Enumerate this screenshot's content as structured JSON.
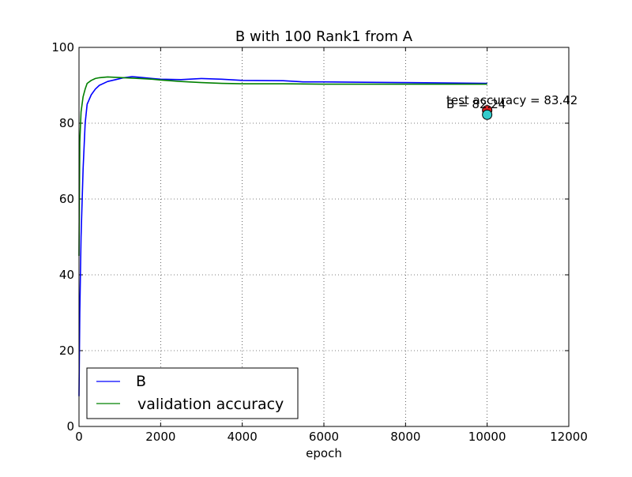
{
  "chart_data": {
    "type": "line",
    "title": "B with 100 Rank1 from A",
    "xlabel": "epoch",
    "ylabel": "",
    "xlim": [
      0,
      12000
    ],
    "ylim": [
      0,
      100
    ],
    "xticks": [
      0,
      2000,
      4000,
      6000,
      8000,
      10000,
      12000
    ],
    "yticks": [
      0,
      20,
      40,
      60,
      80,
      100
    ],
    "grid": true,
    "legend_position": "lower-left",
    "series": [
      {
        "name": "B",
        "color": "#0000ff",
        "x": [
          0,
          20,
          50,
          100,
          150,
          200,
          300,
          400,
          500,
          700,
          900,
          1100,
          1300,
          1500,
          1800,
          2000,
          2500,
          3000,
          3500,
          4000,
          5000,
          5500,
          6000,
          7000,
          8000,
          9000,
          10000
        ],
        "y": [
          8,
          30,
          50,
          68,
          80,
          85,
          87.5,
          89,
          90,
          91,
          91.5,
          92,
          92.3,
          92.1,
          91.8,
          91.6,
          91.5,
          91.8,
          91.6,
          91.3,
          91.2,
          90.9,
          90.9,
          90.8,
          90.7,
          90.6,
          90.5
        ]
      },
      {
        "name": "validation accuracy",
        "color": "#008000",
        "x": [
          0,
          20,
          50,
          100,
          150,
          200,
          300,
          400,
          500,
          700,
          900,
          1100,
          1300,
          1500,
          1800,
          2000,
          2500,
          3000,
          3500,
          4000,
          5000,
          6000,
          7000,
          8000,
          9000,
          10000
        ],
        "y": [
          45,
          75,
          83,
          87,
          89,
          90.5,
          91.3,
          91.8,
          92,
          92.2,
          92.1,
          92,
          91.9,
          91.8,
          91.6,
          91.4,
          91,
          90.7,
          90.5,
          90.4,
          90.4,
          90.3,
          90.3,
          90.3,
          90.3,
          90.3
        ]
      }
    ],
    "points": [
      {
        "x": 10000,
        "y": 83.42,
        "color": "#d62020"
      },
      {
        "x": 10000,
        "y": 82.24,
        "color": "#33cccc"
      }
    ],
    "annotations": [
      {
        "text": "test accuracy = 83.42",
        "x": 9000,
        "y": 85
      },
      {
        "text": "B = 82.24",
        "x": 9000,
        "y": 84
      }
    ]
  }
}
